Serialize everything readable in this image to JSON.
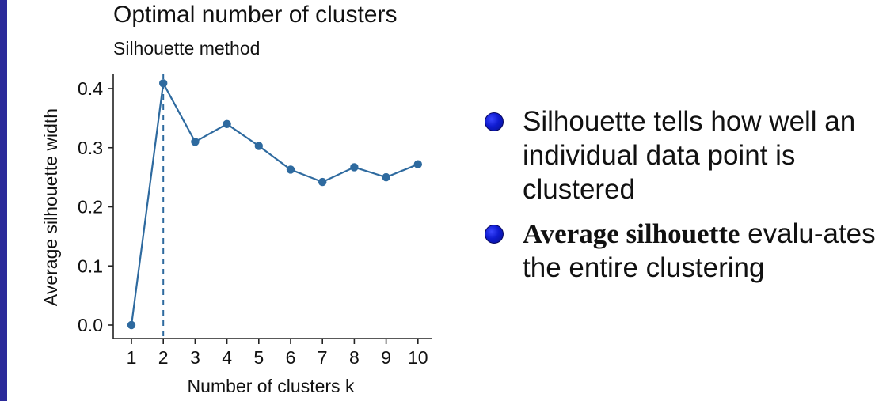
{
  "colors": {
    "accent_bar": "#2b2a9a",
    "line": "#2e6a9f",
    "bullet": "#0f1bd0"
  },
  "chart_data": {
    "type": "line",
    "title": "Optimal number of clusters",
    "subtitle": "Silhouette method",
    "xlabel": "Number of clusters k",
    "ylabel": "Average silhouette width",
    "categories": [
      "1",
      "2",
      "3",
      "4",
      "5",
      "6",
      "7",
      "8",
      "9",
      "10"
    ],
    "series": [
      {
        "values": [
          0.0,
          0.409,
          0.31,
          0.34,
          0.303,
          0.263,
          0.242,
          0.267,
          0.25,
          0.272
        ]
      }
    ],
    "yticks": [
      "0.0",
      "0.1",
      "0.2",
      "0.3",
      "0.4"
    ],
    "ylim": [
      0,
      0.41
    ],
    "vline_at": "2",
    "vline_style": "dashed",
    "grid": false
  },
  "bullets": [
    {
      "text": "Silhouette tells how well an individual data point is clustered"
    },
    {
      "bold": "Average silhouette",
      "text": " evalu-ates the entire clustering"
    }
  ]
}
